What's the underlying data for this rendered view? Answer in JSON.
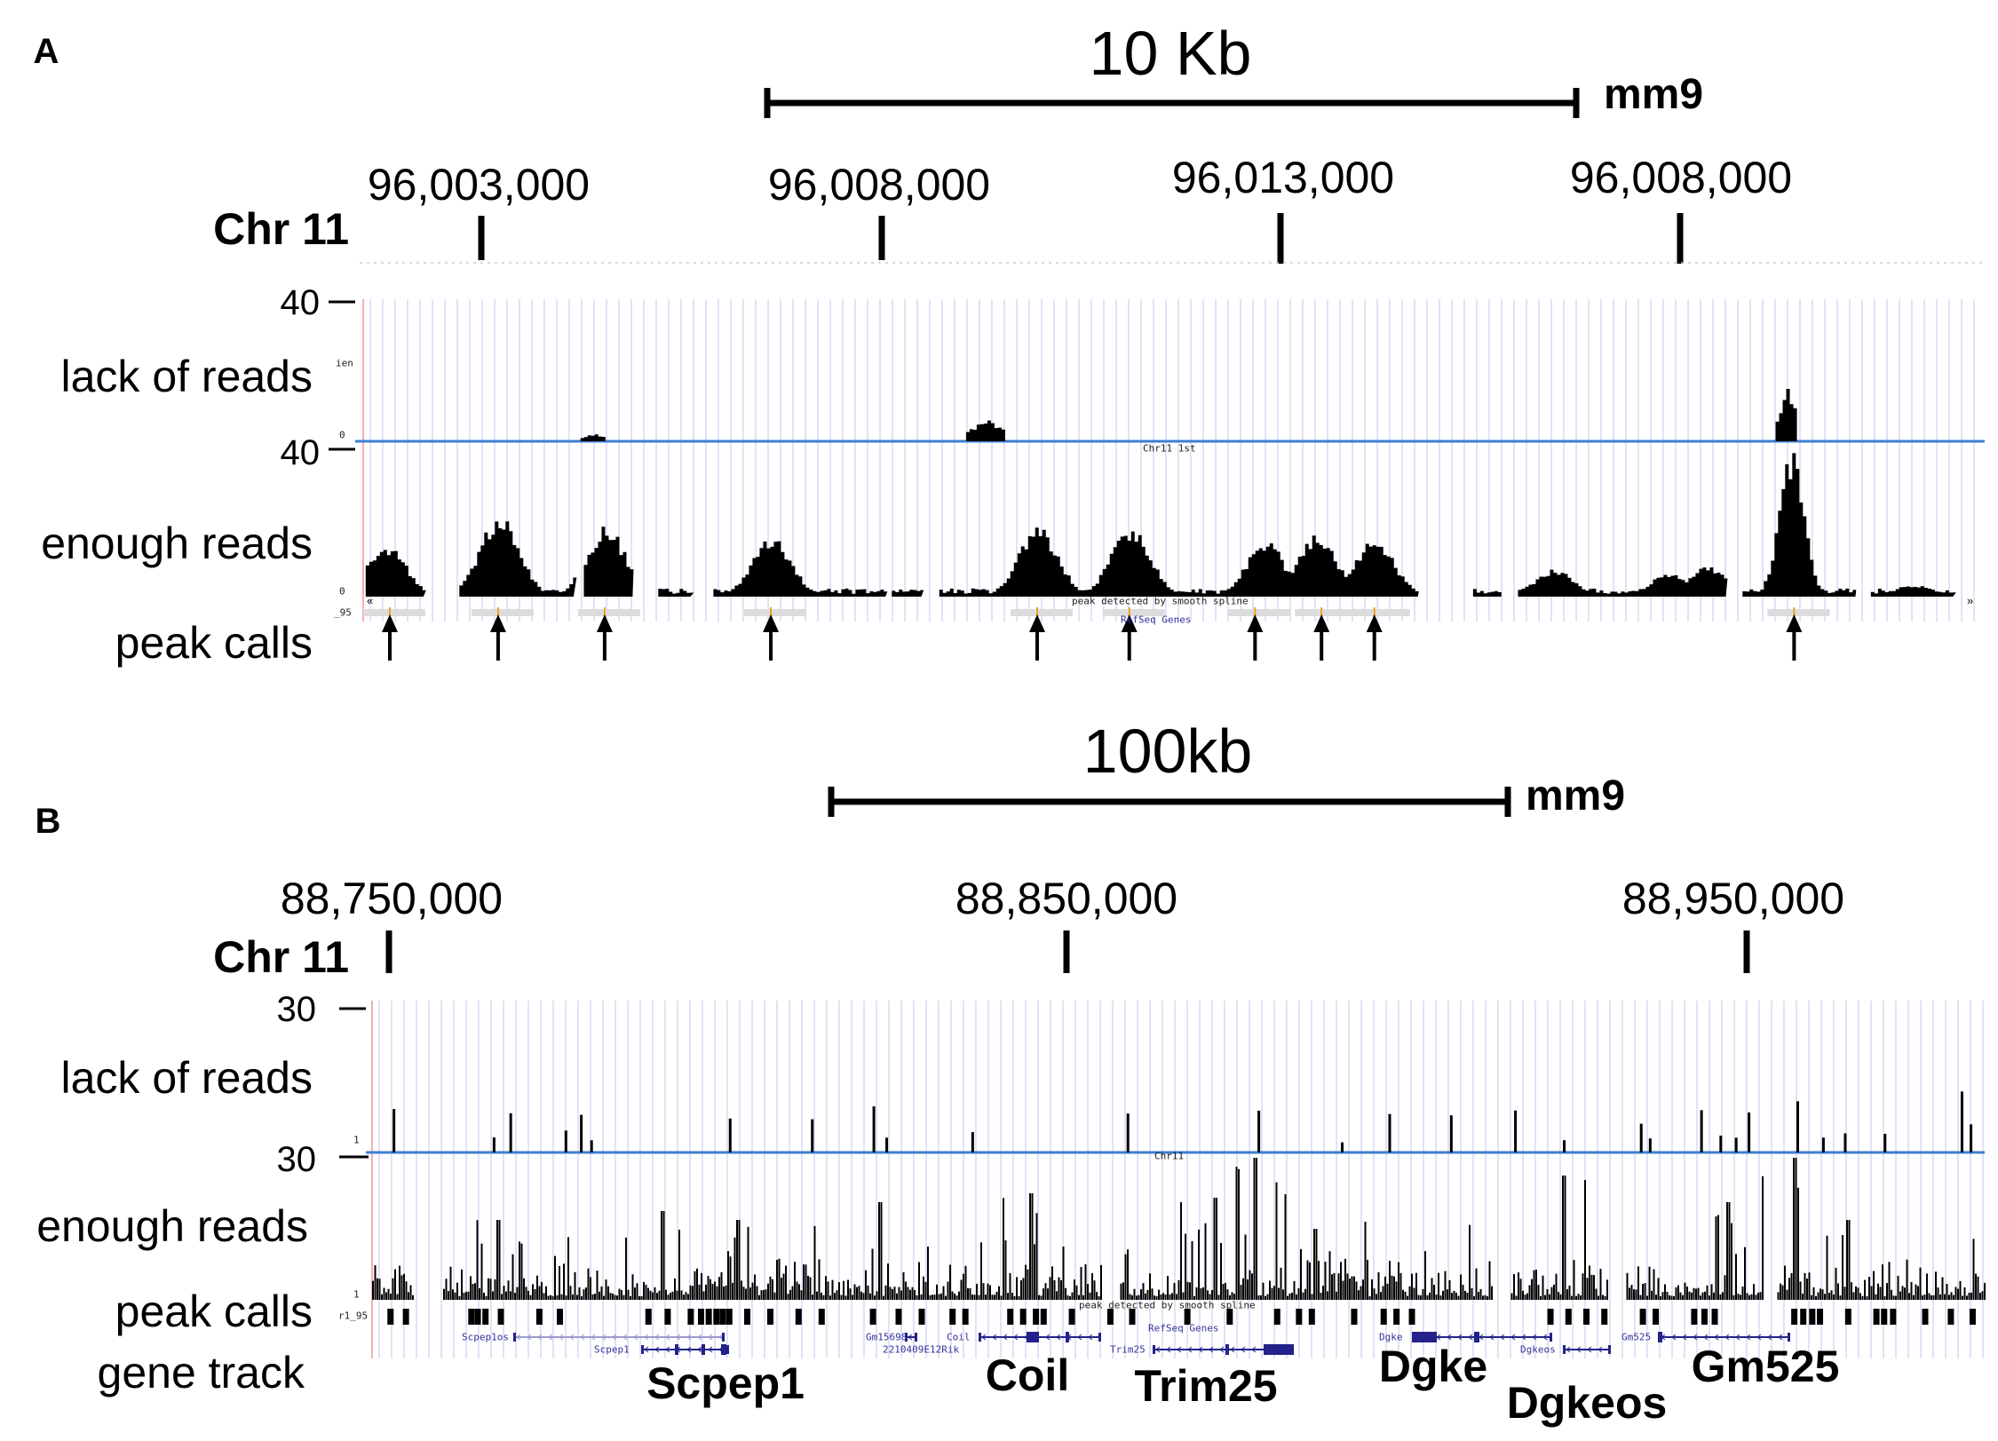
{
  "colors": {
    "grid": "#d8d8f5",
    "track_line": "#3d7fd0",
    "signal": "#000000",
    "gene": "#22228a",
    "peak_bar": "#dcdcdc",
    "peak_tick": "#f0a020",
    "left_edge": "#f4b0b0"
  },
  "panel_a": {
    "letter": "A",
    "scale_label": "10 Kb",
    "assembly": "mm9",
    "chrom_label": "Chr 11",
    "coords": [
      "96,003,000",
      "96,008,000",
      "96,013,000",
      "96,008,000"
    ],
    "tracks": {
      "lack": "lack of reads",
      "enough": "enough reads",
      "peaks": "peak calls"
    },
    "axis_max_lack": "40",
    "axis_max_enough": "40",
    "tiny": {
      "lack_name": "ien",
      "zero1": "0",
      "zero2": "0",
      "chr_label": "Chr11 1st",
      "peak_track": "peak detected by smooth spline",
      "peak_prefix": "_95",
      "refseq": "RefSeq Genes"
    },
    "enough_peaks_bp": [
      [
        96001798,
        13
      ],
      [
        96003208,
        21
      ],
      [
        96004538,
        18
      ],
      [
        96006605,
        15
      ],
      [
        96009937,
        18
      ],
      [
        96011090,
        18
      ],
      [
        96012772,
        14
      ],
      [
        96013413,
        16
      ],
      [
        96014134,
        15
      ],
      [
        96016377,
        7
      ],
      [
        96017819,
        6
      ],
      [
        96018299,
        8
      ],
      [
        96019340,
        37
      ],
      [
        96020862,
        3
      ]
    ],
    "lack_peaks_bp": [
      [
        96004394,
        2
      ],
      [
        96009296,
        6
      ],
      [
        96019292,
        14
      ]
    ],
    "peak_calls_bp": [
      96001858,
      96003210,
      96004540,
      96006615,
      96009940,
      96011090,
      96012660,
      96013490,
      96014150,
      96019390
    ]
  },
  "panel_b": {
    "letter": "B",
    "scale_label": "100kb",
    "assembly": "mm9",
    "chrom_label": "Chr 11",
    "coords": [
      "88,750,000",
      "88,850,000",
      "88,950,000"
    ],
    "tracks": {
      "lack": "lack of reads",
      "enough": "enough reads",
      "peaks": "peak calls",
      "genes": "gene track"
    },
    "axis_max_lack": "30",
    "axis_max_enough": "30",
    "tiny": {
      "one1": "1",
      "one2": "1",
      "chr_label": "Chr11",
      "peak_track": "peak detected by smooth spline",
      "peak_prefix": "r1_95",
      "refseq": "RefSeq Genes"
    },
    "small_gene_labels": [
      "Scpep1os",
      "Scpep1",
      "Gm15698",
      "2210409E12Rik",
      "Coil",
      "Trim25",
      "Dgke",
      "Dgkeos",
      "Gm525"
    ],
    "gene_labels": [
      "Scpep1",
      "Coil",
      "Trim25",
      "Dgke",
      "Dgkeos",
      "Gm525"
    ]
  }
}
